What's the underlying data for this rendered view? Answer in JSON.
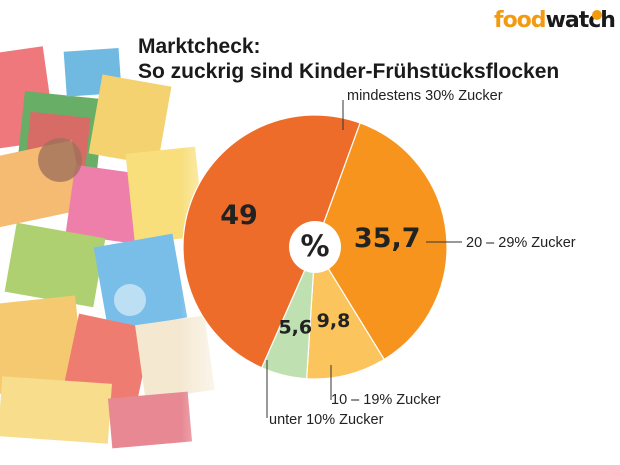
{
  "header": {
    "logo_text_1": "food",
    "logo_text_2": "watch",
    "title_line1": "Marktcheck:",
    "title_line2": "So zuckrig sind Kinder-Frühstücksflocken"
  },
  "chart_data": {
    "type": "pie",
    "center_label": "%",
    "slices": [
      {
        "label": "mindestens 30% Zucker",
        "value": 49,
        "value_label": "49",
        "color": "#ee6c2a"
      },
      {
        "label": "20 – 29% Zucker",
        "value": 35.7,
        "value_label": "35,7",
        "color": "#f7941d"
      },
      {
        "label": "10 – 19% Zucker",
        "value": 9.8,
        "value_label": "9,8",
        "color": "#fbc45c"
      },
      {
        "label": "unter 10% Zucker",
        "value": 5.6,
        "value_label": "5,6",
        "color": "#bfe0b0"
      }
    ]
  },
  "colors": {
    "logo_orange": "#f39a10",
    "title": "#1a1a1a"
  }
}
